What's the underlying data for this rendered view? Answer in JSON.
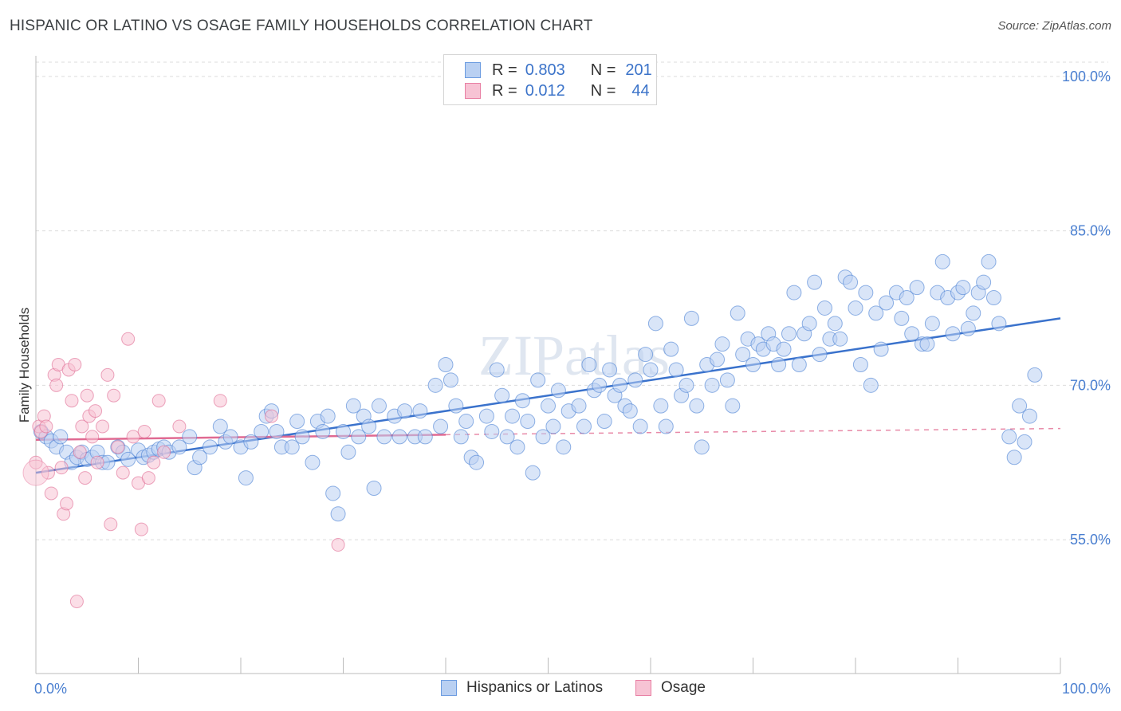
{
  "title": "HISPANIC OR LATINO VS OSAGE FAMILY HOUSEHOLDS CORRELATION CHART",
  "source": "Source: ZipAtlas.com",
  "watermark": "ZIPatlas",
  "legend": {
    "series1": {
      "r_label": "R =",
      "r_value": "0.803",
      "n_label": "N =",
      "n_value": "201",
      "color": "#6b9be0",
      "fill": "#b9d0f2"
    },
    "series2": {
      "r_label": "R =",
      "r_value": "0.012",
      "n_label": "N =",
      "n_value": "44",
      "color": "#e87fa3",
      "fill": "#f7c3d4"
    }
  },
  "bottom_legend": [
    "Hispanics or Latinos",
    "Osage"
  ],
  "chart_data": {
    "type": "scatter",
    "xlabel": "",
    "ylabel": "Family Households",
    "xlim": [
      0,
      100
    ],
    "ylim": [
      42,
      102
    ],
    "x_tick_labels": [
      "0.0%",
      "100.0%"
    ],
    "y_ticks": [
      55,
      70,
      85,
      100
    ],
    "y_tick_labels": [
      "55.0%",
      "70.0%",
      "85.0%",
      "100.0%"
    ],
    "series": [
      {
        "name": "Hispanics or Latinos",
        "color": "#4a80d4",
        "fill": "#b9d0f2",
        "trend": {
          "x": [
            0,
            100
          ],
          "y": [
            61.5,
            76.5
          ]
        },
        "points": [
          [
            0.5,
            65.5
          ],
          [
            1,
            65
          ],
          [
            1.5,
            64.6
          ],
          [
            2,
            64
          ],
          [
            2.4,
            65
          ],
          [
            3,
            63.5
          ],
          [
            3.5,
            62.5
          ],
          [
            4,
            63
          ],
          [
            4.5,
            63.5
          ],
          [
            5,
            62.8
          ],
          [
            5.5,
            63
          ],
          [
            6,
            63.5
          ],
          [
            6.5,
            62.5
          ],
          [
            7,
            62.5
          ],
          [
            8,
            64
          ],
          [
            8.5,
            63.5
          ],
          [
            9,
            62.8
          ],
          [
            10,
            63.7
          ],
          [
            10.5,
            63
          ],
          [
            11,
            63.2
          ],
          [
            11.5,
            63.5
          ],
          [
            12,
            63.8
          ],
          [
            12.5,
            64
          ],
          [
            13,
            63.5
          ],
          [
            14,
            64
          ],
          [
            15,
            65
          ],
          [
            15.5,
            62
          ],
          [
            16,
            63
          ],
          [
            17,
            64
          ],
          [
            18,
            66
          ],
          [
            18.5,
            64.5
          ],
          [
            19,
            65
          ],
          [
            20,
            64
          ],
          [
            20.5,
            61
          ],
          [
            21,
            64.5
          ],
          [
            22,
            65.5
          ],
          [
            22.5,
            67
          ],
          [
            23,
            67.5
          ],
          [
            23.5,
            65.5
          ],
          [
            24,
            64
          ],
          [
            25,
            64
          ],
          [
            25.5,
            66.5
          ],
          [
            26,
            65
          ],
          [
            27,
            62.5
          ],
          [
            27.5,
            66.5
          ],
          [
            28,
            65.5
          ],
          [
            28.5,
            67
          ],
          [
            29,
            59.5
          ],
          [
            29.5,
            57.5
          ],
          [
            30,
            65.5
          ],
          [
            30.5,
            63.5
          ],
          [
            31,
            68
          ],
          [
            31.5,
            65
          ],
          [
            32,
            67
          ],
          [
            32.5,
            66
          ],
          [
            33,
            60
          ],
          [
            33.5,
            68
          ],
          [
            34,
            65
          ],
          [
            35,
            67
          ],
          [
            35.5,
            65
          ],
          [
            36,
            67.5
          ],
          [
            37,
            65
          ],
          [
            37.5,
            67.5
          ],
          [
            38,
            65
          ],
          [
            39,
            70
          ],
          [
            39.5,
            66
          ],
          [
            40,
            72
          ],
          [
            40.5,
            70.5
          ],
          [
            41,
            68
          ],
          [
            41.5,
            65
          ],
          [
            42,
            66.5
          ],
          [
            42.5,
            63
          ],
          [
            43,
            62.5
          ],
          [
            44,
            67
          ],
          [
            44.5,
            65.5
          ],
          [
            45,
            71.5
          ],
          [
            45.5,
            69
          ],
          [
            46,
            65
          ],
          [
            46.5,
            67
          ],
          [
            47,
            64
          ],
          [
            47.5,
            68.5
          ],
          [
            48,
            66.5
          ],
          [
            48.5,
            61.5
          ],
          [
            49,
            70.5
          ],
          [
            49.5,
            65
          ],
          [
            50,
            68
          ],
          [
            50.5,
            66
          ],
          [
            51,
            69.5
          ],
          [
            51.5,
            64
          ],
          [
            52,
            67.5
          ],
          [
            53,
            68
          ],
          [
            53.5,
            66
          ],
          [
            54,
            72
          ],
          [
            54.5,
            69.5
          ],
          [
            55,
            70
          ],
          [
            55.5,
            66.5
          ],
          [
            56,
            71.5
          ],
          [
            56.5,
            69
          ],
          [
            57,
            70
          ],
          [
            57.5,
            68
          ],
          [
            58,
            67.5
          ],
          [
            58.5,
            70.5
          ],
          [
            59,
            66
          ],
          [
            59.5,
            73
          ],
          [
            60,
            71.5
          ],
          [
            60.5,
            76
          ],
          [
            61,
            68
          ],
          [
            61.5,
            66
          ],
          [
            62,
            73.5
          ],
          [
            62.5,
            71.5
          ],
          [
            63,
            69
          ],
          [
            63.5,
            70
          ],
          [
            64,
            76.5
          ],
          [
            64.5,
            68
          ],
          [
            65,
            64
          ],
          [
            65.5,
            72
          ],
          [
            66,
            70
          ],
          [
            66.5,
            72.5
          ],
          [
            67,
            74
          ],
          [
            67.5,
            70.5
          ],
          [
            68,
            68
          ],
          [
            68.5,
            77
          ],
          [
            69,
            73
          ],
          [
            69.5,
            74.5
          ],
          [
            70,
            72
          ],
          [
            70.5,
            74
          ],
          [
            71,
            73.5
          ],
          [
            71.5,
            75
          ],
          [
            72,
            74
          ],
          [
            72.5,
            72
          ],
          [
            73,
            73.5
          ],
          [
            73.5,
            75
          ],
          [
            74,
            79
          ],
          [
            74.5,
            72
          ],
          [
            75,
            75
          ],
          [
            75.5,
            76
          ],
          [
            76,
            80
          ],
          [
            76.5,
            73
          ],
          [
            77,
            77.5
          ],
          [
            77.5,
            74.5
          ],
          [
            78,
            76
          ],
          [
            78.5,
            74.5
          ],
          [
            79,
            80.5
          ],
          [
            79.5,
            80
          ],
          [
            80,
            77.5
          ],
          [
            80.5,
            72
          ],
          [
            81,
            79
          ],
          [
            81.5,
            70
          ],
          [
            82,
            77
          ],
          [
            82.5,
            73.5
          ],
          [
            83,
            78
          ],
          [
            84,
            79
          ],
          [
            84.5,
            76.5
          ],
          [
            85,
            78.5
          ],
          [
            85.5,
            75
          ],
          [
            86,
            79.5
          ],
          [
            86.5,
            74
          ],
          [
            87,
            74
          ],
          [
            87.5,
            76
          ],
          [
            88,
            79
          ],
          [
            88.5,
            82
          ],
          [
            89,
            78.5
          ],
          [
            89.5,
            75
          ],
          [
            90,
            79
          ],
          [
            90.5,
            79.5
          ],
          [
            91,
            75.5
          ],
          [
            91.5,
            77
          ],
          [
            92,
            79
          ],
          [
            92.5,
            80
          ],
          [
            93,
            82
          ],
          [
            93.5,
            78.5
          ],
          [
            94,
            76
          ],
          [
            95,
            65
          ],
          [
            95.5,
            63
          ],
          [
            96,
            68
          ],
          [
            96.5,
            64.5
          ],
          [
            97,
            67
          ],
          [
            97.5,
            71
          ]
        ]
      },
      {
        "name": "Osage",
        "color": "#e06a92",
        "fill": "#f7c3d4",
        "trend": {
          "x": [
            0,
            40
          ],
          "y": [
            64.7,
            65.2
          ]
        },
        "trend_dashed": {
          "x": [
            40,
            100
          ],
          "y": [
            65.2,
            65.8
          ]
        },
        "points": [
          [
            0,
            62.5
          ],
          [
            0.3,
            66
          ],
          [
            0.5,
            65.5
          ],
          [
            0.8,
            67
          ],
          [
            1,
            66
          ],
          [
            1.2,
            61.5
          ],
          [
            1.5,
            59.5
          ],
          [
            1.8,
            71
          ],
          [
            2,
            70
          ],
          [
            2.2,
            72
          ],
          [
            2.5,
            62
          ],
          [
            2.7,
            57.5
          ],
          [
            3,
            58.5
          ],
          [
            3.2,
            71.5
          ],
          [
            3.5,
            68.5
          ],
          [
            3.8,
            72
          ],
          [
            4,
            49
          ],
          [
            4.3,
            63.5
          ],
          [
            4.5,
            66
          ],
          [
            4.8,
            61
          ],
          [
            5,
            69
          ],
          [
            5.2,
            67
          ],
          [
            5.5,
            65
          ],
          [
            5.8,
            67.5
          ],
          [
            6,
            62.5
          ],
          [
            6.5,
            66
          ],
          [
            7,
            71
          ],
          [
            7.3,
            56.5
          ],
          [
            7.6,
            69
          ],
          [
            8,
            64
          ],
          [
            8.5,
            61.5
          ],
          [
            9,
            74.5
          ],
          [
            9.5,
            65
          ],
          [
            10,
            60.5
          ],
          [
            10.3,
            56
          ],
          [
            10.6,
            65.5
          ],
          [
            11,
            61
          ],
          [
            11.5,
            62.5
          ],
          [
            12,
            68.5
          ],
          [
            12.5,
            63.5
          ],
          [
            14,
            66
          ],
          [
            18,
            68.5
          ],
          [
            23,
            67
          ],
          [
            29.5,
            54.5
          ]
        ]
      }
    ]
  }
}
